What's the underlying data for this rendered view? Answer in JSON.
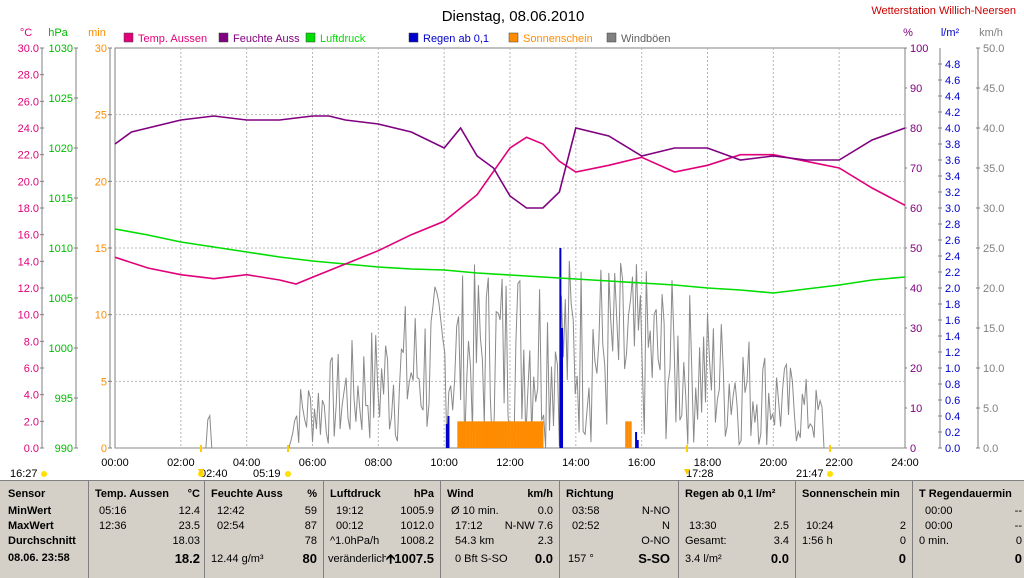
{
  "title": "Dienstag, 08.06.2010",
  "station": "Wetterstation Willich-Neersen",
  "axis_units": {
    "temp": "°C",
    "pressure": "hPa",
    "sun": "min",
    "hum": "%",
    "rain": "l/m²",
    "wind": "km/h"
  },
  "legend": [
    {
      "label": "Temp. Aussen",
      "color": "#e0007a"
    },
    {
      "label": "Feuchte Auss",
      "color": "#800080"
    },
    {
      "label": "Luftdruck",
      "color": "#00dd00"
    },
    {
      "label": "Regen ab 0,1",
      "color": "#0000cc"
    },
    {
      "label": "Sonnenschein",
      "color": "#ff8c00"
    },
    {
      "label": "Windböen",
      "color": "#808080"
    }
  ],
  "markers": {
    "sunrise": "16:27",
    "t1": "02:40",
    "t2": "05:19",
    "t3": "17:28",
    "sunset": "21:47"
  },
  "chart_data": {
    "type": "line",
    "x_ticks": [
      "00:00",
      "02:00",
      "04:00",
      "06:00",
      "08:00",
      "10:00",
      "12:00",
      "14:00",
      "16:00",
      "18:00",
      "20:00",
      "22:00",
      "24:00"
    ],
    "temp_ticks": [
      "0.0",
      "2.0",
      "4.0",
      "6.0",
      "8.0",
      "10.0",
      "12.0",
      "14.0",
      "16.0",
      "18.0",
      "20.0",
      "22.0",
      "24.0",
      "26.0",
      "28.0",
      "30.0"
    ],
    "pressure_ticks": [
      "990",
      "995",
      "1000",
      "1005",
      "1010",
      "1015",
      "1020",
      "1025",
      "1030"
    ],
    "sun_ticks": [
      "0",
      "5",
      "10",
      "15",
      "20",
      "25",
      "30"
    ],
    "hum_ticks": [
      "0",
      "10",
      "20",
      "30",
      "40",
      "50",
      "60",
      "70",
      "80",
      "90",
      "100"
    ],
    "rain_ticks": [
      "0.0",
      "0.2",
      "0.4",
      "0.6",
      "0.8",
      "1.0",
      "1.2",
      "1.4",
      "1.6",
      "1.8",
      "2.0",
      "2.2",
      "2.4",
      "2.6",
      "2.8",
      "3.0",
      "3.2",
      "3.4",
      "3.6",
      "3.8",
      "4.0",
      "4.2",
      "4.4",
      "4.6",
      "4.8"
    ],
    "wind_ticks": [
      "0.0",
      "5.0",
      "10.0",
      "15.0",
      "20.0",
      "25.0",
      "30.0",
      "35.0",
      "40.0",
      "45.0",
      "50.0"
    ],
    "temp_range": [
      0,
      30
    ],
    "pressure_range": [
      990,
      1030
    ],
    "sun_range": [
      0,
      30
    ],
    "hum_range": [
      0,
      100
    ],
    "rain_range": [
      0,
      5
    ],
    "wind_range": [
      0,
      50
    ],
    "series": [
      {
        "name": "Temp. Aussen",
        "color": "#e0007a",
        "x": [
          0,
          1,
          2,
          3,
          4,
          5,
          5.5,
          6,
          7,
          8,
          9,
          10,
          11,
          12,
          12.5,
          13,
          13.5,
          14,
          15,
          16,
          17,
          18,
          19,
          20,
          21,
          22,
          23,
          24
        ],
        "y": [
          14.3,
          13.5,
          13.0,
          12.7,
          13.0,
          12.6,
          12.3,
          12.8,
          13.8,
          14.8,
          16.0,
          17.0,
          19.0,
          22.5,
          23.3,
          22.8,
          21.5,
          20.7,
          21.2,
          21.8,
          20.7,
          21.2,
          22.0,
          22.0,
          21.5,
          21.0,
          19.5,
          18.2
        ]
      },
      {
        "name": "Feuchte Auss",
        "color": "#800080",
        "x": [
          0,
          0.5,
          1,
          2,
          3,
          4,
          5,
          6,
          6.5,
          7,
          8,
          9,
          10,
          10.5,
          11,
          11.5,
          12,
          12.5,
          13,
          13.5,
          14,
          15,
          16,
          17,
          18,
          19,
          20,
          21,
          22,
          23,
          24
        ],
        "y": [
          76,
          79,
          80,
          82,
          83,
          82,
          82,
          83,
          83,
          82,
          81,
          79,
          75,
          80,
          73,
          70,
          63,
          60,
          60,
          64,
          80,
          78,
          73,
          75,
          75,
          72,
          73,
          72,
          72,
          77,
          80
        ]
      },
      {
        "name": "Luftdruck",
        "color": "#00dd00",
        "x": [
          0,
          1,
          2,
          3,
          4,
          5,
          6,
          7,
          8,
          9,
          10,
          11,
          12,
          13,
          14,
          15,
          16,
          17,
          18,
          19,
          20,
          21,
          22,
          23,
          24
        ],
        "y": [
          1011.9,
          1011.3,
          1010.6,
          1010.1,
          1009.6,
          1009.1,
          1008.7,
          1008.4,
          1008.1,
          1007.9,
          1007.8,
          1007.5,
          1007.3,
          1007.1,
          1006.9,
          1006.7,
          1006.5,
          1006.3,
          1006.0,
          1005.8,
          1005.5,
          1005.9,
          1006.3,
          1006.8,
          1007.1
        ]
      },
      {
        "name": "Regen ab 0,1",
        "color": "#0000cc",
        "bars": [
          {
            "x": 10.05,
            "v": 0.3
          },
          {
            "x": 10.1,
            "v": 0.4
          },
          {
            "x": 13.5,
            "v": 2.5
          },
          {
            "x": 13.55,
            "v": 1.5
          },
          {
            "x": 15.8,
            "v": 0.2
          },
          {
            "x": 15.85,
            "v": 0.1
          }
        ]
      },
      {
        "name": "Sonnenschein",
        "color": "#ff8c00",
        "start": 10.4,
        "end": 13.0,
        "extra": [
          15.5,
          15.6
        ],
        "value": 2
      }
    ]
  },
  "table": {
    "sensor": {
      "header": "Sensor",
      "rows": [
        "MinWert",
        "MaxWert",
        "Durchschnitt"
      ],
      "last": "08.06. 23:58"
    },
    "temp": {
      "header": "Temp. Aussen",
      "unit": "°C",
      "min_t": "05:16",
      "min": "12.4",
      "max_t": "12:36",
      "max": "23.5",
      "avg": "18.03",
      "cur": "18.2"
    },
    "hum": {
      "header": "Feuchte Auss",
      "unit": "%",
      "min_t": "12:42",
      "min": "59",
      "max_t": "02:54",
      "max": "87",
      "avg": "78",
      "abs": "12.44 g/m³",
      "cur": "80"
    },
    "press": {
      "header": "Luftdruck",
      "unit": "hPa",
      "min_t": "19:12",
      "min": "1005.9",
      "max_t": "00:12",
      "max": "1012.0",
      "trend": "^1.0hPa/h",
      "avg": "1008.2",
      "state": "veränderlich",
      "cur": "1007.5"
    },
    "wind": {
      "header": "Wind",
      "unit": "km/h",
      "r1a": "Ø 10 min.",
      "r1b": "0.0",
      "r2a": "17:12",
      "r2b": "N-NW 7.6",
      "r3a": "54.3 km",
      "r3b": "2.3",
      "r4a": "0 Bft S-SO",
      "r4b": "0.0"
    },
    "dir": {
      "header": "Richtung",
      "r1a": "03:58",
      "r1b": "N-NO",
      "r2a": "02:52",
      "r2b": "N",
      "r3b": "O-NO",
      "r4a": "157 °",
      "r4b": "S-SO"
    },
    "rain": {
      "header": "Regen ab 0,1  l/m²",
      "r2a": "13:30",
      "r2b": "2.5",
      "r3a": "Gesamt:",
      "r3b": "3.4",
      "r4a": "3.4 l/m²",
      "r4b": "0.0"
    },
    "sun": {
      "header": "Sonnenschein min",
      "r2a": "10:24",
      "r2b": "2",
      "r3a": "1:56 h",
      "r3b": "0",
      "r4b": "0"
    },
    "rd": {
      "header": "T Regendauermin",
      "r1a": "00:00",
      "r1b": "--",
      "r2a": "00:00",
      "r2b": "--",
      "r3a": "0 min.",
      "r3b": "0",
      "r4b": "0"
    }
  }
}
